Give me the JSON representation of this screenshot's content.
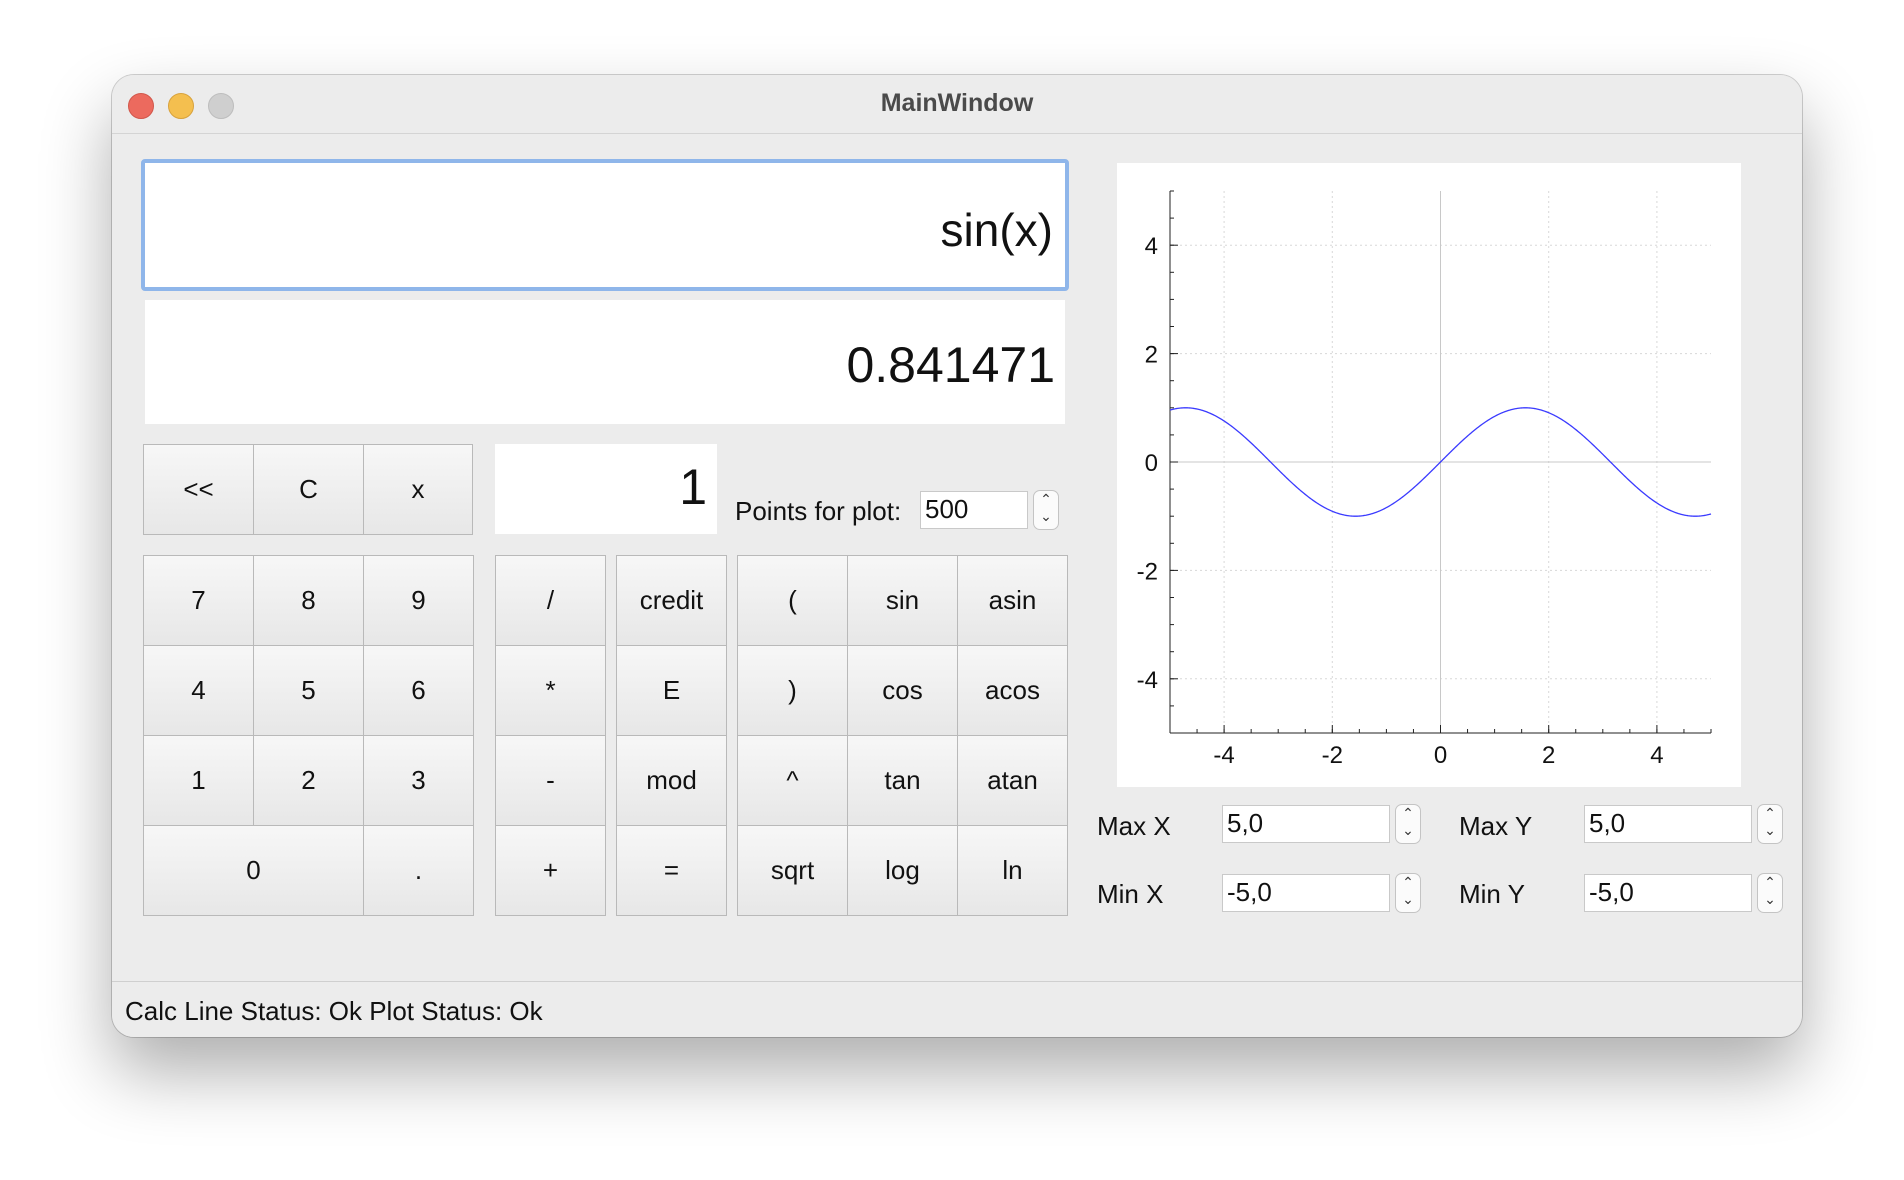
{
  "window": {
    "title": "MainWindow"
  },
  "calc": {
    "expression": "sin(x)",
    "result": "0.841471",
    "x_value": "1",
    "points_label": "Points for plot:",
    "points_value": "500"
  },
  "buttons": {
    "backspace": "<<",
    "clear": "C",
    "x": "x",
    "d7": "7",
    "d8": "8",
    "d9": "9",
    "d4": "4",
    "d5": "5",
    "d6": "6",
    "d1": "1",
    "d2": "2",
    "d3": "3",
    "d0": "0",
    "dot": ".",
    "div": "/",
    "mul": "*",
    "sub": "-",
    "add": "+",
    "credit": "credit",
    "exp": "E",
    "mod": "mod",
    "eq": "=",
    "lparen": "(",
    "rparen": ")",
    "pow": "^",
    "sqrt": "sqrt",
    "sin": "sin",
    "cos": "cos",
    "tan": "tan",
    "log": "log",
    "asin": "asin",
    "acos": "acos",
    "atan": "atan",
    "ln": "ln"
  },
  "ranges": {
    "max_x_label": "Max X",
    "max_x": "5,0",
    "min_x_label": "Min X",
    "min_x": "-5,0",
    "max_y_label": "Max Y",
    "max_y": "5,0",
    "min_y_label": "Min Y",
    "min_y": "-5,0"
  },
  "status": "Calc Line Status: Ok Plot Status: Ok",
  "chart_data": {
    "type": "line",
    "function": "sin(x)",
    "xlim": [
      -5,
      5
    ],
    "ylim": [
      -5,
      5
    ],
    "xticks": [
      "-4",
      "-2",
      "0",
      "2",
      "4"
    ],
    "yticks": [
      "4",
      "2",
      "0",
      "-2",
      "-4"
    ],
    "grid": true,
    "series": [
      {
        "color": "#3a3aff",
        "points": 500,
        "x": [
          -5,
          -4.5,
          -4,
          -3.5,
          -3,
          -2.5,
          -2,
          -1.5,
          -1,
          -0.5,
          0,
          0.5,
          1,
          1.5,
          2,
          2.5,
          3,
          3.5,
          4,
          4.5,
          5
        ],
        "y": [
          0.959,
          0.978,
          0.757,
          0.351,
          -0.141,
          -0.598,
          -0.909,
          -0.997,
          -0.841,
          -0.479,
          0,
          0.479,
          0.841,
          0.997,
          0.909,
          0.598,
          0.141,
          -0.351,
          -0.757,
          -0.978,
          -0.959
        ]
      }
    ]
  }
}
